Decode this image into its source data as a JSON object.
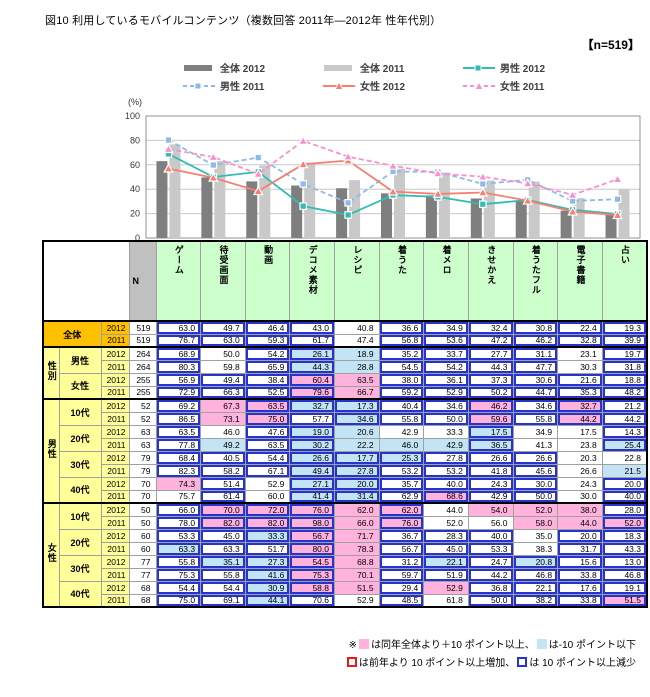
{
  "title": "図10 利用しているモバイルコンテンツ（複数回答 2011年―2012年 性年代別）",
  "n_label": "【n=519】",
  "colors": {
    "pink_bg": "#FFB3DC",
    "light_blue_bg": "#C2E4F5",
    "blue_border": "#2633CC",
    "red_border": "#E31B1B",
    "bar_2012": "#7F7F7F",
    "bar_2011": "#C9C9C9",
    "male_2012": "#2FBDB4",
    "male_2011": "#8EB9EB",
    "female_2012": "#F97E72",
    "female_2011": "#FB8ECB"
  },
  "legend": [
    {
      "label": "全体 2012",
      "type": "bar",
      "color": "#7F7F7F"
    },
    {
      "label": "全体 2011",
      "type": "bar",
      "color": "#C9C9C9"
    },
    {
      "label": "男性 2012",
      "type": "line",
      "color": "#2FBDB4",
      "dash": false,
      "marker": "square"
    },
    {
      "label": "男性 2011",
      "type": "line",
      "color": "#8EB9EB",
      "dash": true,
      "marker": "square"
    },
    {
      "label": "女性 2012",
      "type": "line",
      "color": "#F97E72",
      "dash": false,
      "marker": "triangle"
    },
    {
      "label": "女性 2011",
      "type": "line",
      "color": "#FB8ECB",
      "dash": true,
      "marker": "triangle"
    }
  ],
  "chart_data": {
    "type": "bar+line",
    "categories": [
      "ゲーム",
      "待受画面",
      "動画",
      "デコメ素材",
      "レシピ",
      "着うた",
      "着メロ",
      "きせかえ",
      "着うたフル",
      "電子書籍",
      "占い"
    ],
    "ylabel": "(%)",
    "ylim": [
      0,
      100
    ],
    "yticks": [
      0,
      20,
      40,
      60,
      80,
      100
    ],
    "grid": true,
    "legend_position": "top",
    "series": [
      {
        "name": "全体 2012",
        "type": "bar",
        "color": "#7F7F7F",
        "values": [
          63.0,
          49.7,
          46.4,
          43.0,
          40.8,
          36.6,
          34.9,
          32.4,
          30.8,
          22.4,
          19.3
        ]
      },
      {
        "name": "全体 2011",
        "type": "bar",
        "color": "#C9C9C9",
        "values": [
          76.7,
          63.0,
          59.3,
          61.7,
          47.4,
          56.8,
          53.6,
          47.2,
          46.2,
          32.8,
          39.9
        ]
      },
      {
        "name": "男性 2012",
        "type": "line",
        "color": "#2FBDB4",
        "dash": false,
        "marker": "square",
        "values": [
          68.9,
          50.0,
          54.2,
          26.1,
          18.9,
          35.2,
          33.7,
          27.7,
          31.1,
          23.1,
          19.7
        ]
      },
      {
        "name": "男性 2011",
        "type": "line",
        "color": "#8EB9EB",
        "dash": true,
        "marker": "square",
        "values": [
          80.3,
          59.8,
          65.9,
          44.3,
          28.8,
          54.5,
          54.2,
          44.3,
          47.7,
          30.3,
          31.8
        ]
      },
      {
        "name": "女性 2012",
        "type": "line",
        "color": "#F97E72",
        "dash": false,
        "marker": "triangle",
        "values": [
          56.9,
          49.4,
          38.4,
          60.4,
          63.5,
          38.0,
          36.1,
          37.3,
          30.6,
          21.6,
          18.8
        ]
      },
      {
        "name": "女性 2011",
        "type": "line",
        "color": "#FB8ECB",
        "dash": true,
        "marker": "triangle",
        "values": [
          72.9,
          66.3,
          52.5,
          79.6,
          66.7,
          59.2,
          52.9,
          50.2,
          44.7,
          35.3,
          48.2
        ]
      }
    ]
  },
  "table": {
    "n_header": "N",
    "col_headers": [
      "ゲーム",
      "待受画面",
      "動画",
      "デコメ素材",
      "レシピ",
      "着うた",
      "着メロ",
      "きせかえ",
      "着うたフル",
      "電子書籍",
      "占い"
    ],
    "groups": [
      {
        "label": "",
        "overall": true,
        "cats": [
          {
            "label": "全体",
            "years": [
              {
                "year": "2012",
                "n": 519,
                "values": [
                  63.0,
                  49.7,
                  46.4,
                  43.0,
                  40.8,
                  36.6,
                  34.9,
                  32.4,
                  30.8,
                  22.4,
                  19.3
                ]
              },
              {
                "year": "2011",
                "n": 519,
                "values": [
                  76.7,
                  63.0,
                  59.3,
                  61.7,
                  47.4,
                  56.8,
                  53.6,
                  47.2,
                  46.2,
                  32.8,
                  39.9
                ]
              }
            ]
          }
        ]
      },
      {
        "label": "性別",
        "overall": false,
        "cats": [
          {
            "label": "男性",
            "years": [
              {
                "year": "2012",
                "n": 264,
                "values": [
                  68.9,
                  50.0,
                  54.2,
                  26.1,
                  18.9,
                  35.2,
                  33.7,
                  27.7,
                  31.1,
                  23.1,
                  19.7
                ]
              },
              {
                "year": "2011",
                "n": 264,
                "values": [
                  80.3,
                  59.8,
                  65.9,
                  44.3,
                  28.8,
                  54.5,
                  54.2,
                  44.3,
                  47.7,
                  30.3,
                  31.8
                ]
              }
            ]
          },
          {
            "label": "女性",
            "years": [
              {
                "year": "2012",
                "n": 255,
                "values": [
                  56.9,
                  49.4,
                  38.4,
                  60.4,
                  63.5,
                  38.0,
                  36.1,
                  37.3,
                  30.6,
                  21.6,
                  18.8
                ]
              },
              {
                "year": "2011",
                "n": 255,
                "values": [
                  72.9,
                  66.3,
                  52.5,
                  79.6,
                  66.7,
                  59.2,
                  52.9,
                  50.2,
                  44.7,
                  35.3,
                  48.2
                ]
              }
            ]
          }
        ]
      },
      {
        "label": "男性",
        "overall": false,
        "cats": [
          {
            "label": "10代",
            "years": [
              {
                "year": "2012",
                "n": 52,
                "values": [
                  69.2,
                  67.3,
                  63.5,
                  32.7,
                  17.3,
                  40.4,
                  34.6,
                  46.2,
                  34.6,
                  32.7,
                  21.2
                ]
              },
              {
                "year": "2011",
                "n": 52,
                "values": [
                  86.5,
                  73.1,
                  75.0,
                  57.7,
                  34.6,
                  55.8,
                  50.0,
                  59.6,
                  55.8,
                  44.2,
                  44.2
                ]
              }
            ]
          },
          {
            "label": "20代",
            "years": [
              {
                "year": "2012",
                "n": 63,
                "values": [
                  63.5,
                  46.0,
                  47.6,
                  19.0,
                  20.6,
                  42.9,
                  33.3,
                  17.5,
                  34.9,
                  17.5,
                  14.3
                ]
              },
              {
                "year": "2011",
                "n": 63,
                "values": [
                  77.8,
                  49.2,
                  63.5,
                  30.2,
                  22.2,
                  46.0,
                  42.9,
                  36.5,
                  41.3,
                  23.8,
                  25.4
                ]
              }
            ]
          },
          {
            "label": "30代",
            "years": [
              {
                "year": "2012",
                "n": 79,
                "values": [
                  68.4,
                  40.5,
                  54.4,
                  26.6,
                  17.7,
                  25.3,
                  27.8,
                  26.6,
                  26.6,
                  20.3,
                  22.8
                ]
              },
              {
                "year": "2011",
                "n": 79,
                "values": [
                  82.3,
                  58.2,
                  67.1,
                  49.4,
                  27.8,
                  53.2,
                  53.2,
                  41.8,
                  45.6,
                  26.6,
                  21.5
                ]
              }
            ]
          },
          {
            "label": "40代",
            "years": [
              {
                "year": "2012",
                "n": 70,
                "values": [
                  74.3,
                  51.4,
                  52.9,
                  27.1,
                  20.0,
                  35.7,
                  40.0,
                  24.3,
                  30.0,
                  24.3,
                  20.0
                ]
              },
              {
                "year": "2011",
                "n": 70,
                "values": [
                  75.7,
                  61.4,
                  60.0,
                  41.4,
                  31.4,
                  62.9,
                  68.6,
                  42.9,
                  50.0,
                  30.0,
                  40.0
                ]
              }
            ]
          }
        ]
      },
      {
        "label": "女性",
        "overall": false,
        "cats": [
          {
            "label": "10代",
            "years": [
              {
                "year": "2012",
                "n": 50,
                "values": [
                  66.0,
                  70.0,
                  72.0,
                  76.0,
                  62.0,
                  62.0,
                  44.0,
                  54.0,
                  52.0,
                  38.0,
                  28.0
                ]
              },
              {
                "year": "2011",
                "n": 50,
                "values": [
                  78.0,
                  82.0,
                  82.0,
                  98.0,
                  66.0,
                  76.0,
                  52.0,
                  56.0,
                  58.0,
                  44.0,
                  52.0
                ]
              }
            ]
          },
          {
            "label": "20代",
            "years": [
              {
                "year": "2012",
                "n": 60,
                "values": [
                  53.3,
                  45.0,
                  33.3,
                  56.7,
                  71.7,
                  36.7,
                  28.3,
                  40.0,
                  35.0,
                  20.0,
                  18.3
                ]
              },
              {
                "year": "2011",
                "n": 60,
                "values": [
                  63.3,
                  63.3,
                  51.7,
                  80.0,
                  78.3,
                  56.7,
                  45.0,
                  53.3,
                  38.3,
                  31.7,
                  43.3
                ]
              }
            ]
          },
          {
            "label": "30代",
            "years": [
              {
                "year": "2012",
                "n": 77,
                "values": [
                  55.8,
                  35.1,
                  27.3,
                  54.5,
                  68.8,
                  31.2,
                  22.1,
                  24.7,
                  20.8,
                  15.6,
                  13.0
                ]
              },
              {
                "year": "2011",
                "n": 77,
                "values": [
                  75.3,
                  55.8,
                  41.6,
                  75.3,
                  70.1,
                  59.7,
                  51.9,
                  44.2,
                  46.8,
                  33.8,
                  46.8
                ]
              }
            ]
          },
          {
            "label": "40代",
            "years": [
              {
                "year": "2012",
                "n": 68,
                "values": [
                  54.4,
                  54.4,
                  30.9,
                  58.8,
                  51.5,
                  29.4,
                  52.9,
                  36.8,
                  22.1,
                  17.6,
                  19.1
                ]
              },
              {
                "year": "2011",
                "n": 68,
                "values": [
                  75.0,
                  69.1,
                  44.1,
                  70.6,
                  52.9,
                  48.5,
                  61.8,
                  50.0,
                  38.2,
                  33.8,
                  51.5
                ]
              }
            ]
          }
        ]
      }
    ]
  },
  "notes": {
    "mark": "※",
    "line1_a": "は同年全体より＋10 ポイント以上、",
    "line1_b": "は-10 ポイント以下",
    "line2_a": "は前年より 10 ポイント以上増加、",
    "line2_b": "は 10 ポイント以上減少"
  }
}
